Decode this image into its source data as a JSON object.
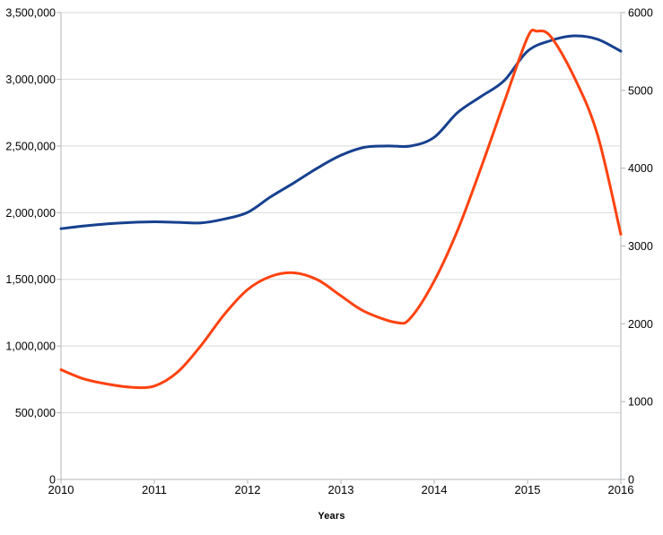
{
  "chart_data": {
    "type": "line",
    "title": "",
    "xlabel": "Years",
    "grid": "horizontal",
    "legend": "none",
    "background": "#ffffff",
    "axis_color": "#b0b4b8",
    "grid_color": "#d9d9d9",
    "x_axis": {
      "min": 2010,
      "max": 2016,
      "ticks": [
        {
          "value": 2010,
          "label": "2010"
        },
        {
          "value": 2011,
          "label": "2011"
        },
        {
          "value": 2012,
          "label": "2012"
        },
        {
          "value": 2013,
          "label": "2013"
        },
        {
          "value": 2014,
          "label": "2014"
        },
        {
          "value": 2015,
          "label": "2015"
        },
        {
          "value": 2016,
          "label": "2016"
        }
      ]
    },
    "left_axis": {
      "min": 0,
      "max": 3500000,
      "ticks": [
        {
          "value": 0,
          "label": "0"
        },
        {
          "value": 500000,
          "label": "500,000"
        },
        {
          "value": 1000000,
          "label": "1,000,000"
        },
        {
          "value": 1500000,
          "label": "1,500,000"
        },
        {
          "value": 2000000,
          "label": "2,000,000"
        },
        {
          "value": 2500000,
          "label": "2,500,000"
        },
        {
          "value": 3000000,
          "label": "3,000,000"
        },
        {
          "value": 3500000,
          "label": "3,500,000"
        }
      ]
    },
    "right_axis": {
      "min": 0,
      "max": 6000,
      "ticks": [
        {
          "value": 0,
          "label": "0"
        },
        {
          "value": 1000,
          "label": "1000"
        },
        {
          "value": 2000,
          "label": "2000"
        },
        {
          "value": 3000,
          "label": "3000"
        },
        {
          "value": 4000,
          "label": "4000"
        },
        {
          "value": 5000,
          "label": "5000"
        },
        {
          "value": 6000,
          "label": "6000"
        }
      ]
    },
    "series": [
      {
        "name": "series-1-left-axis",
        "axis": "left",
        "color": "#17418f",
        "stroke_width": 3,
        "points": [
          [
            2010.0,
            1880000
          ],
          [
            2010.25,
            1900000
          ],
          [
            2010.5,
            1916000
          ],
          [
            2010.75,
            1926000
          ],
          [
            2011.0,
            1931000
          ],
          [
            2011.25,
            1927000
          ],
          [
            2011.5,
            1923000
          ],
          [
            2011.75,
            1952000
          ],
          [
            2012.0,
            2002000
          ],
          [
            2012.25,
            2120000
          ],
          [
            2012.5,
            2225000
          ],
          [
            2012.75,
            2335000
          ],
          [
            2013.0,
            2430000
          ],
          [
            2013.25,
            2490000
          ],
          [
            2013.5,
            2500000
          ],
          [
            2013.75,
            2500000
          ],
          [
            2014.0,
            2565000
          ],
          [
            2014.25,
            2750000
          ],
          [
            2014.5,
            2870000
          ],
          [
            2014.75,
            2990000
          ],
          [
            2015.0,
            3210000
          ],
          [
            2015.25,
            3290000
          ],
          [
            2015.5,
            3325000
          ],
          [
            2015.75,
            3300000
          ],
          [
            2016.0,
            3210000
          ]
        ]
      },
      {
        "name": "series-2-right-axis",
        "axis": "right",
        "color": "#ff420e",
        "stroke_width": 3,
        "points": [
          [
            2010.0,
            1410
          ],
          [
            2010.25,
            1290
          ],
          [
            2010.5,
            1225
          ],
          [
            2010.75,
            1185
          ],
          [
            2011.0,
            1200
          ],
          [
            2011.25,
            1380
          ],
          [
            2011.5,
            1720
          ],
          [
            2011.75,
            2120
          ],
          [
            2012.0,
            2440
          ],
          [
            2012.25,
            2610
          ],
          [
            2012.5,
            2655
          ],
          [
            2012.75,
            2565
          ],
          [
            2013.0,
            2360
          ],
          [
            2013.25,
            2160
          ],
          [
            2013.6,
            2015
          ],
          [
            2013.75,
            2080
          ],
          [
            2014.0,
            2550
          ],
          [
            2014.25,
            3200
          ],
          [
            2014.5,
            4000
          ],
          [
            2014.75,
            4850
          ],
          [
            2015.0,
            5680
          ],
          [
            2015.1,
            5760
          ],
          [
            2015.25,
            5690
          ],
          [
            2015.5,
            5170
          ],
          [
            2015.75,
            4430
          ],
          [
            2016.0,
            3150
          ]
        ]
      }
    ]
  }
}
